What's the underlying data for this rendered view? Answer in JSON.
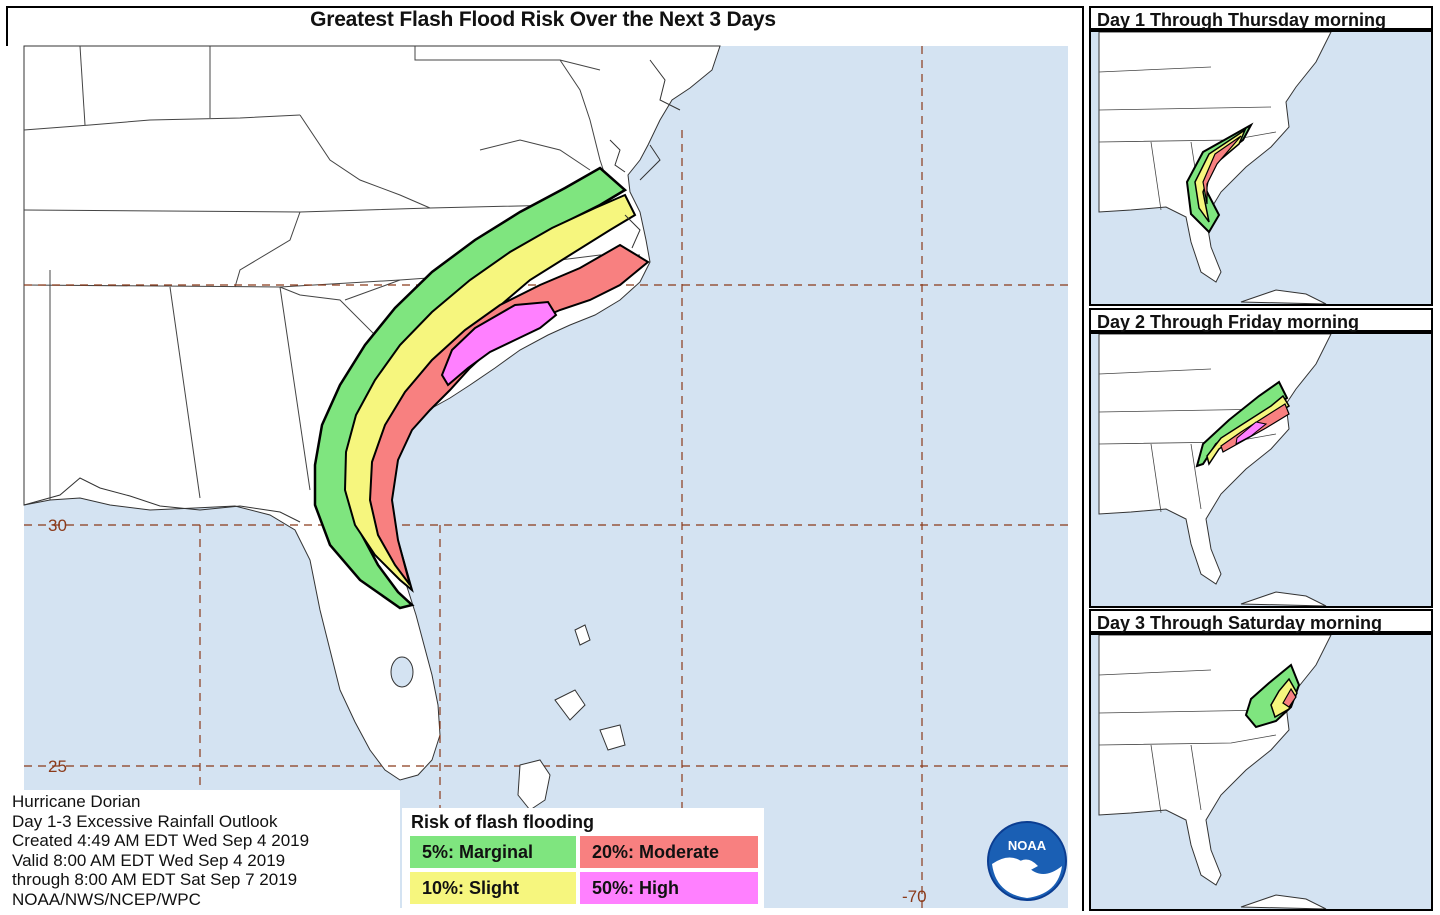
{
  "title": "Greatest Flash Flood Risk Over the Next 3 Days",
  "grid_labels": {
    "lat_30": "30",
    "lat_25": "25",
    "lon_70": "-70"
  },
  "info": {
    "line1": "Hurricane Dorian",
    "line2": "Day 1-3 Excessive Rainfall Outlook",
    "line3": "Created 4:49 AM EDT Wed Sep 4 2019",
    "line4": "Valid 8:00 AM EDT Wed Sep 4 2019",
    "line5": "through 8:00 AM EDT Sat Sep 7 2019",
    "line6": "NOAA/NWS/NCEP/WPC"
  },
  "legend": {
    "title": "Risk of flash flooding",
    "marginal": "5%: Marginal",
    "moderate": "20%: Moderate",
    "slight": "10%: Slight",
    "high": "50%: High"
  },
  "colors": {
    "ocean": "#d4e3f2",
    "land": "#ffffff",
    "grid": "#8b3a1a",
    "marginal": "#7fe57f",
    "slight": "#f6f67e",
    "moderate": "#f88080",
    "high": "#ff80ff"
  },
  "insets": {
    "day1": "Day 1 Through Thursday morning",
    "day2": "Day 2 Through Friday morning",
    "day3": "Day 3 Through Saturday morning"
  },
  "logo_text": "NOAA"
}
